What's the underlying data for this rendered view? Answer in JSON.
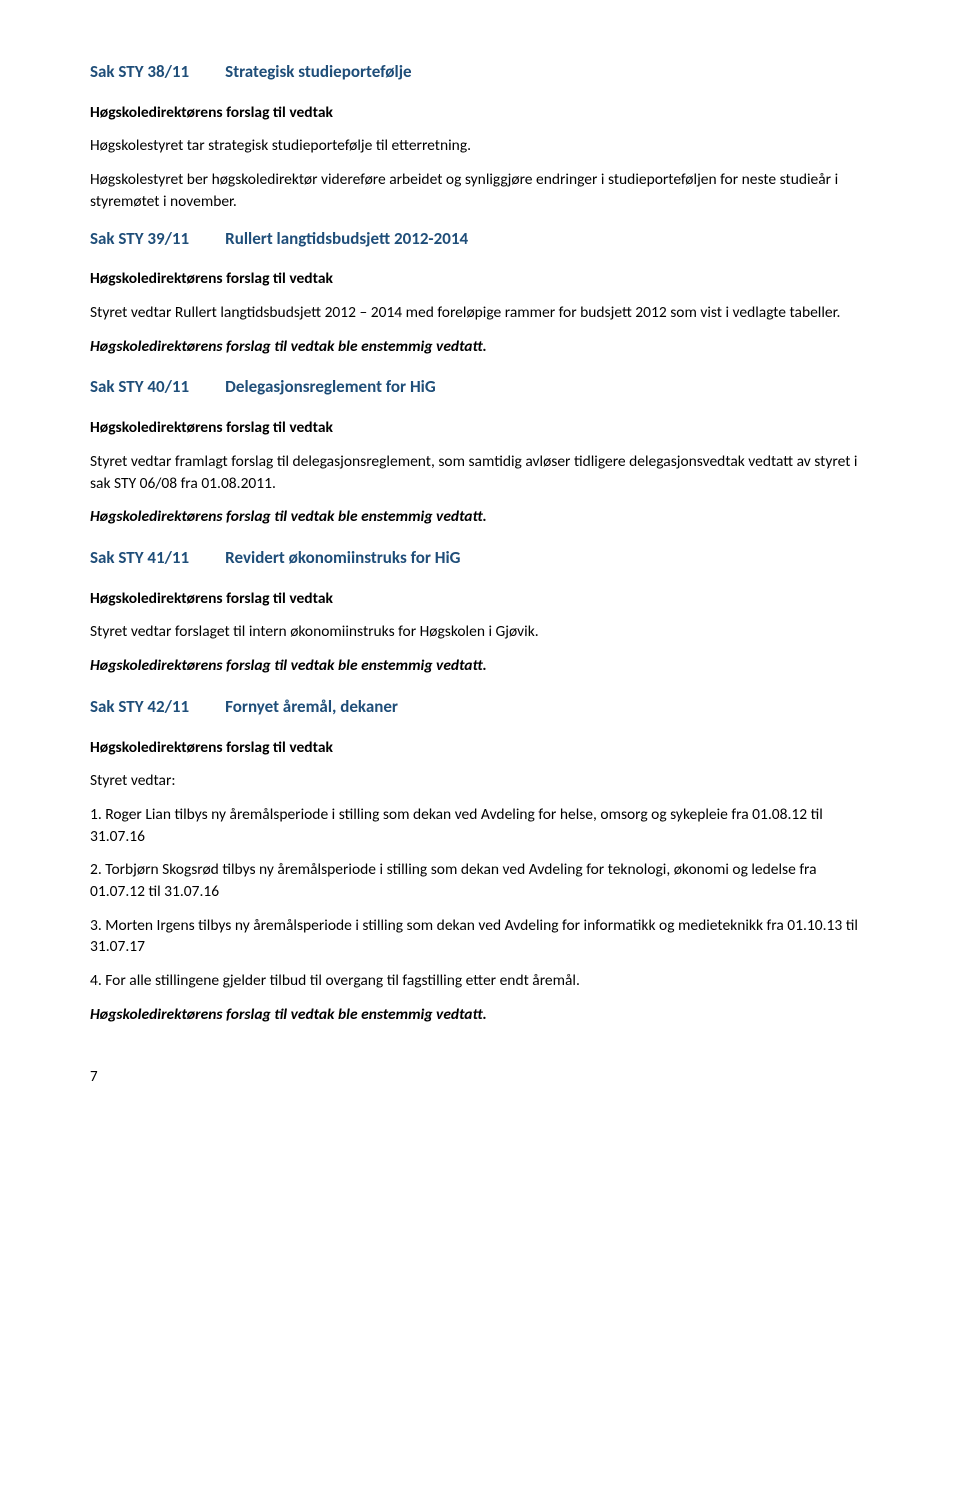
{
  "colors": {
    "heading": "#1f4e79",
    "text": "#000000",
    "background": "#ffffff"
  },
  "typography": {
    "body_font": "Calibri, 'Segoe UI', Arial, sans-serif",
    "body_size_pt": 12,
    "heading_size_pt": 13,
    "heading_weight": 700
  },
  "sections": [
    {
      "sak": "Sak STY 38/11",
      "title": "Strategisk studieportefølje",
      "forslag_label": "Høgskoledirektørens forslag til vedtak",
      "body": [
        "Høgskolestyret tar strategisk studieportefølje til etterretning.",
        "Høgskolestyret ber høgskoledirektør videreføre arbeidet og synliggjøre endringer i studieporteføljen for neste studieår i styremøtet i november."
      ]
    },
    {
      "sak": "Sak STY 39/11",
      "title": "Rullert langtidsbudsjett 2012-2014",
      "forslag_label": "Høgskoledirektørens forslag til vedtak",
      "body": [
        "Styret vedtar Rullert langtidsbudsjett 2012 – 2014 med foreløpige rammer for budsjett 2012 som vist i vedlagte tabeller."
      ],
      "outcome": "Høgskoledirektørens forslag til vedtak ble enstemmig vedtatt."
    },
    {
      "sak": "Sak STY 40/11",
      "title": "Delegasjonsreglement for HiG",
      "forslag_label": "Høgskoledirektørens forslag til vedtak",
      "body": [
        "Styret vedtar framlagt forslag til delegasjonsreglement, som samtidig avløser tidligere delegasjonsvedtak vedtatt av styret i sak STY 06/08 fra 01.08.2011."
      ],
      "outcome": " Høgskoledirektørens forslag til vedtak ble enstemmig vedtatt."
    },
    {
      "sak": "Sak STY 41/11",
      "title": "Revidert økonomiinstruks for HiG",
      "forslag_label": "Høgskoledirektørens forslag til vedtak",
      "body": [
        "Styret vedtar forslaget til intern økonomiinstruks for Høgskolen i Gjøvik."
      ],
      "outcome": "Høgskoledirektørens forslag til vedtak ble enstemmig vedtatt."
    },
    {
      "sak": "Sak STY 42/11",
      "title": "Fornyet åremål, dekaner",
      "forslag_label": "Høgskoledirektørens forslag til vedtak",
      "vedtar_label": "Styret vedtar:",
      "items": [
        "1. Roger Lian tilbys ny åremålsperiode i stilling som dekan ved Avdeling for helse, omsorg og sykepleie fra 01.08.12 til 31.07.16",
        "2. Torbjørn Skogsrød tilbys ny åremålsperiode i stilling som dekan ved Avdeling for teknologi, økonomi og ledelse fra 01.07.12 til 31.07.16",
        "3. Morten Irgens tilbys ny åremålsperiode i stilling som dekan ved Avdeling for informatikk og medieteknikk fra 01.10.13 til 31.07.17",
        "4. For alle stillingene gjelder tilbud til overgang til fagstilling etter endt åremål."
      ],
      "outcome": "Høgskoledirektørens forslag til vedtak ble enstemmig vedtatt."
    }
  ],
  "page_number": "7"
}
